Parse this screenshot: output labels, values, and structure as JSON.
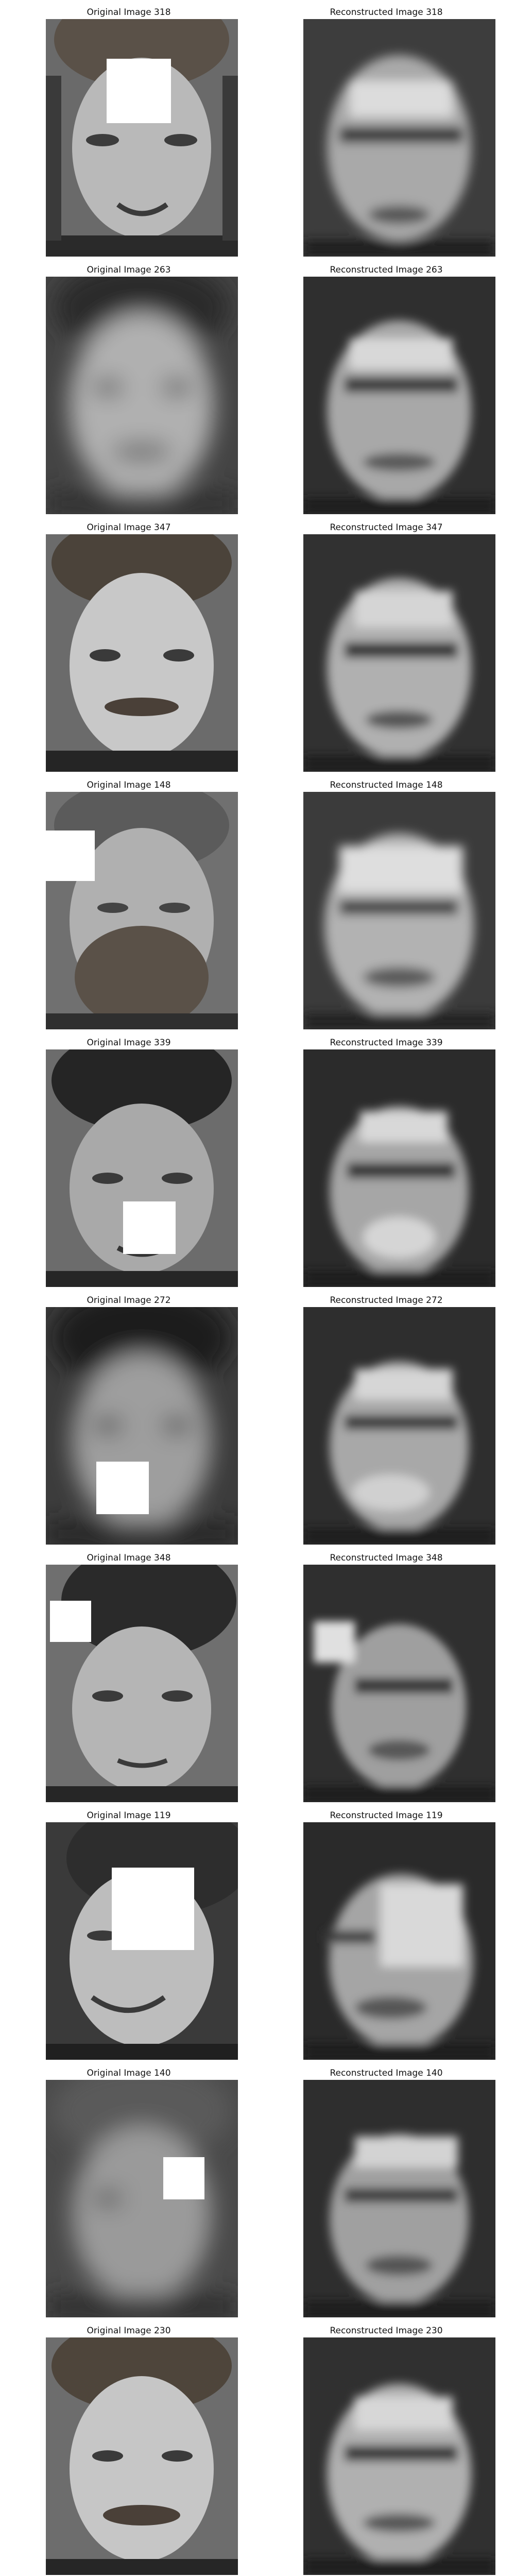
{
  "rows": [
    {
      "original": {
        "title": "Original Image 318",
        "image_index": 318,
        "occluded": true,
        "blurred": false
      },
      "reconstructed": {
        "title": "Reconstructed Image 318",
        "image_index": 318
      }
    },
    {
      "original": {
        "title": "Original Image 263",
        "image_index": 263,
        "occluded": false,
        "blurred": true
      },
      "reconstructed": {
        "title": "Reconstructed Image 263",
        "image_index": 263
      }
    },
    {
      "original": {
        "title": "Original Image 347",
        "image_index": 347,
        "occluded": false,
        "blurred": false
      },
      "reconstructed": {
        "title": "Reconstructed Image 347",
        "image_index": 347
      }
    },
    {
      "original": {
        "title": "Original Image 148",
        "image_index": 148,
        "occluded": true,
        "blurred": false
      },
      "reconstructed": {
        "title": "Reconstructed Image 148",
        "image_index": 148
      }
    },
    {
      "original": {
        "title": "Original Image 339",
        "image_index": 339,
        "occluded": true,
        "blurred": false
      },
      "reconstructed": {
        "title": "Reconstructed Image 339",
        "image_index": 339
      }
    },
    {
      "original": {
        "title": "Original Image 272",
        "image_index": 272,
        "occluded": true,
        "blurred": true
      },
      "reconstructed": {
        "title": "Reconstructed Image 272",
        "image_index": 272
      }
    },
    {
      "original": {
        "title": "Original Image 348",
        "image_index": 348,
        "occluded": true,
        "blurred": false
      },
      "reconstructed": {
        "title": "Reconstructed Image 348",
        "image_index": 348
      }
    },
    {
      "original": {
        "title": "Original Image 119",
        "image_index": 119,
        "occluded": true,
        "blurred": false
      },
      "reconstructed": {
        "title": "Reconstructed Image 119",
        "image_index": 119
      }
    },
    {
      "original": {
        "title": "Original Image 140",
        "image_index": 140,
        "occluded": true,
        "blurred": true
      },
      "reconstructed": {
        "title": "Reconstructed Image 140",
        "image_index": 140
      }
    },
    {
      "original": {
        "title": "Original Image 230",
        "image_index": 230,
        "occluded": false,
        "blurred": false
      },
      "reconstructed": {
        "title": "Reconstructed Image 230",
        "image_index": 230
      }
    }
  ]
}
